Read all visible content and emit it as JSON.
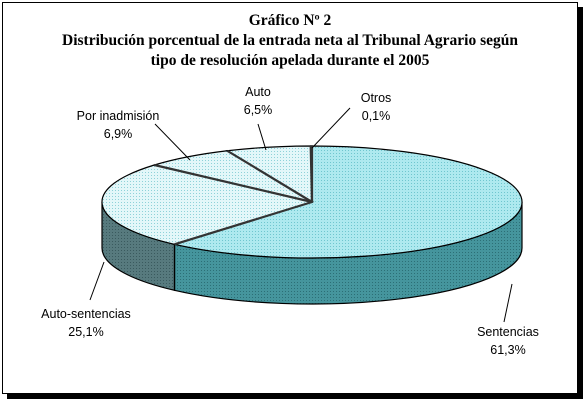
{
  "chart_data": {
    "type": "pie",
    "title_lines": [
      "Gráfico Nº 2",
      "Distribución porcentual de la entrada neta al Tribunal Agrario según",
      "tipo de resolución apelada durante el 2005"
    ],
    "slices": [
      {
        "label": "Sentencias",
        "value": 61.3,
        "value_text": "61,3%"
      },
      {
        "label": "Auto-sentencias",
        "value": 25.1,
        "value_text": "25,1%"
      },
      {
        "label": "Por inadmisión",
        "value": 6.9,
        "value_text": "6,9%"
      },
      {
        "label": "Auto",
        "value": 6.5,
        "value_text": "6,5%"
      },
      {
        "label": "Otros",
        "value": 0.1,
        "value_text": "0,1%"
      }
    ],
    "three_d": true,
    "legend": "none",
    "colors": {
      "top_main": "#aee9ef",
      "top_light": "#d9f4f7",
      "side_main": "#3f8e96",
      "side_dark": "#4d6f73",
      "outline": "#000000",
      "frame_shadow": "#000000"
    }
  }
}
